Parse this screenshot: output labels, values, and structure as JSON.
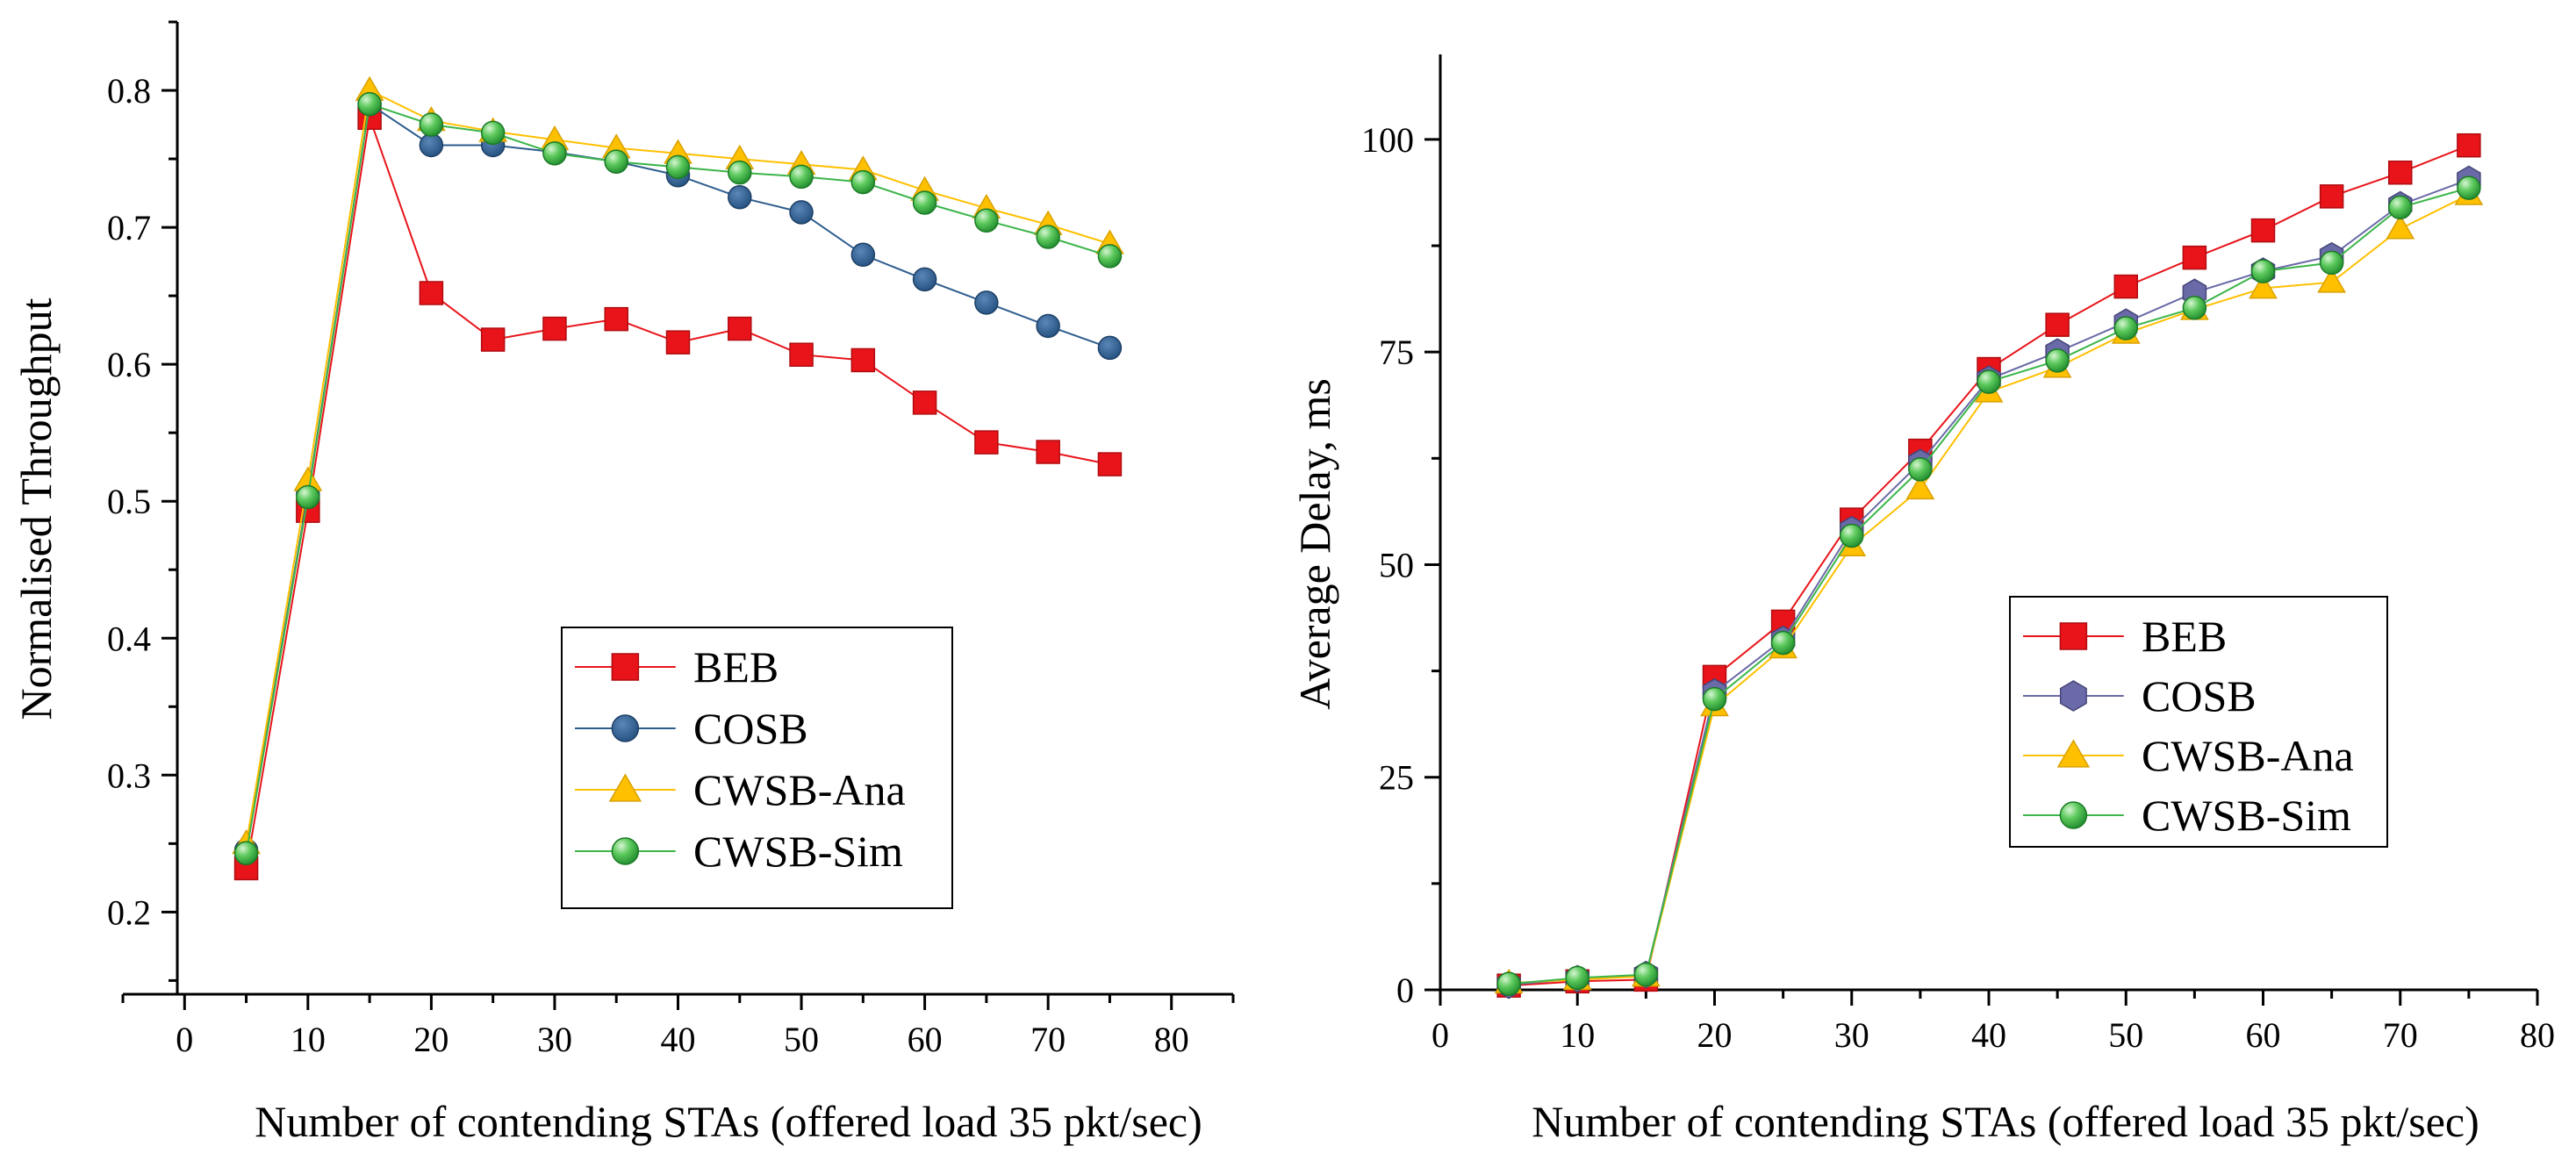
{
  "chart_data": [
    {
      "type": "line",
      "title": "",
      "xlabel": "Number of contending STAs (offered load 35 pkt/sec)",
      "ylabel": "Normalised Throughput",
      "xlim": [
        -5,
        85
      ],
      "ylim": [
        0.14,
        0.85
      ],
      "xticks": [
        0,
        10,
        20,
        30,
        40,
        50,
        60,
        70,
        80
      ],
      "yticks": [
        0.2,
        0.3,
        0.4,
        0.5,
        0.6,
        0.7,
        0.8
      ],
      "ytick_labels": [
        "0.2",
        "0.3",
        "0.4",
        "0.5",
        "0.6",
        "0.7",
        "0.8"
      ],
      "grid": false,
      "legend_position": "center",
      "x": [
        5,
        10,
        15,
        20,
        25,
        30,
        35,
        40,
        45,
        50,
        55,
        60,
        65,
        70,
        75
      ],
      "series": [
        {
          "name": "BEB",
          "marker": "square",
          "color": "#e8141a",
          "values": [
            0.232,
            0.493,
            0.78,
            0.652,
            0.618,
            0.626,
            0.633,
            0.616,
            0.626,
            0.607,
            0.603,
            0.572,
            0.543,
            0.536,
            0.527
          ]
        },
        {
          "name": "COSB",
          "marker": "circle",
          "color": "#2e5d8e",
          "values": [
            0.245,
            0.505,
            0.79,
            0.76,
            0.76,
            0.755,
            0.748,
            0.738,
            0.722,
            0.711,
            0.68,
            0.662,
            0.645,
            0.628,
            0.612
          ]
        },
        {
          "name": "CWSB-Ana",
          "marker": "triangle",
          "color": "#ffc000",
          "values": [
            0.25,
            0.515,
            0.8,
            0.778,
            0.77,
            0.764,
            0.758,
            0.754,
            0.75,
            0.746,
            0.742,
            0.727,
            0.714,
            0.702,
            0.688
          ]
        },
        {
          "name": "CWSB-Sim",
          "marker": "sphere",
          "color": "#3cb54a",
          "values": [
            0.243,
            0.503,
            0.79,
            0.775,
            0.769,
            0.754,
            0.748,
            0.744,
            0.74,
            0.737,
            0.733,
            0.718,
            0.705,
            0.693,
            0.679
          ]
        }
      ]
    },
    {
      "type": "line",
      "title": "",
      "xlabel": "Number of contending STAs (offered load 35 pkt/sec)",
      "ylabel": "Average Delay, ms",
      "xlim": [
        0,
        80
      ],
      "ylim": [
        0,
        110
      ],
      "xticks": [
        0,
        10,
        20,
        30,
        40,
        50,
        60,
        70,
        80
      ],
      "yticks": [
        0,
        25,
        50,
        75,
        100
      ],
      "ytick_labels": [
        "0",
        "25",
        "50",
        "75",
        "100"
      ],
      "grid": false,
      "legend_position": "center-right",
      "x": [
        5,
        10,
        15,
        20,
        25,
        30,
        35,
        40,
        45,
        50,
        55,
        60,
        65,
        70,
        75
      ],
      "series": [
        {
          "name": "BEB",
          "marker": "square",
          "color": "#e8141a",
          "values": [
            0.5,
            1.0,
            1.2,
            36.8,
            43.3,
            55.3,
            63.4,
            73.0,
            78.2,
            82.7,
            86.1,
            89.3,
            93.3,
            96.1,
            99.3
          ]
        },
        {
          "name": "COSB",
          "marker": "hexagon",
          "color": "#6a6aa8",
          "values": [
            0.6,
            1.3,
            1.8,
            35.0,
            41.2,
            54.1,
            62.0,
            71.8,
            75.0,
            78.5,
            82.0,
            84.5,
            86.3,
            92.3,
            95.3
          ]
        },
        {
          "name": "CWSB-Ana",
          "marker": "triangle",
          "color": "#ffc000",
          "values": [
            0.8,
            1.2,
            1.6,
            33.4,
            40.2,
            52.2,
            58.9,
            70.3,
            73.2,
            77.2,
            80.0,
            82.5,
            83.2,
            89.5,
            93.5
          ]
        },
        {
          "name": "CWSB-Sim",
          "marker": "sphere",
          "color": "#3cb54a",
          "values": [
            0.7,
            1.4,
            1.8,
            34.2,
            40.8,
            53.4,
            61.2,
            71.5,
            74.0,
            77.8,
            80.2,
            84.5,
            85.5,
            92.0,
            94.3
          ]
        }
      ]
    }
  ]
}
